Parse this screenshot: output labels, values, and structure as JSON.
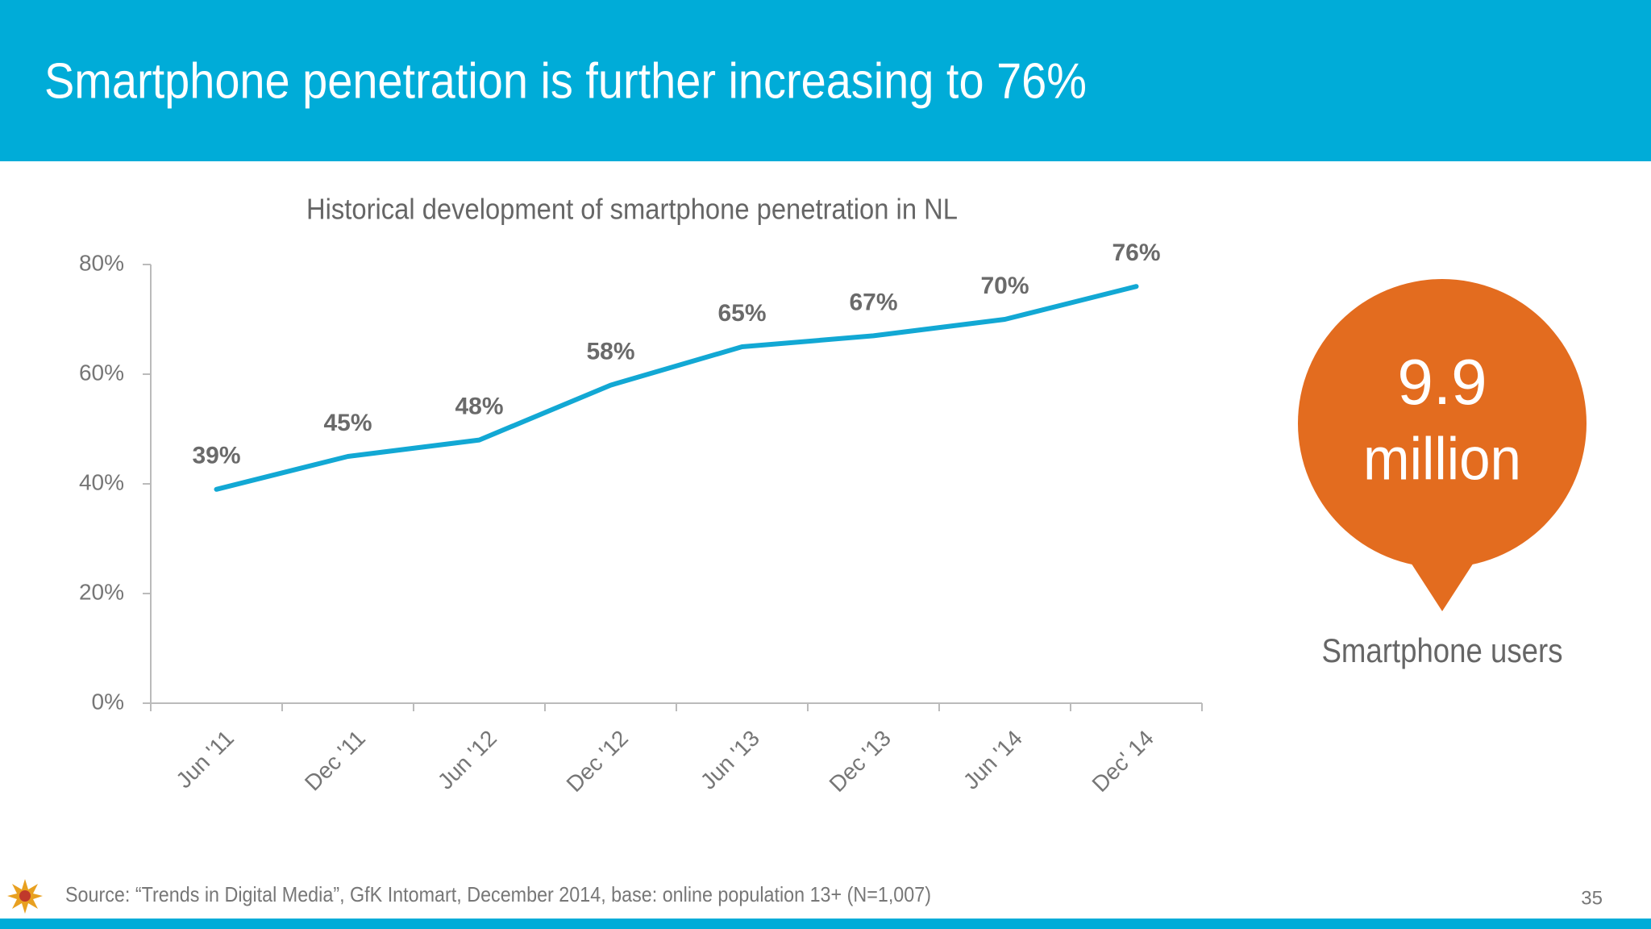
{
  "header": {
    "title": "Smartphone penetration is further increasing to 76%"
  },
  "chart_data": {
    "type": "line",
    "title": "Historical development of smartphone penetration in NL",
    "categories": [
      "Jun '11",
      "Dec '11",
      "Jun '12",
      "Dec '12",
      "Jun '13",
      "Dec '13",
      "Jun '14",
      "Dec' 14"
    ],
    "values": [
      39,
      45,
      48,
      58,
      65,
      67,
      70,
      76
    ],
    "value_labels": [
      "39%",
      "45%",
      "48%",
      "58%",
      "65%",
      "67%",
      "70%",
      "76%"
    ],
    "color": "#12a8d4",
    "ylim": [
      0,
      80
    ],
    "yticks": [
      {
        "value": 0,
        "label": "0%"
      },
      {
        "value": 20,
        "label": "20%"
      },
      {
        "value": 40,
        "label": "40%"
      },
      {
        "value": 60,
        "label": "60%"
      },
      {
        "value": 80,
        "label": "80%"
      }
    ],
    "grid": false
  },
  "callout": {
    "number": "9.9",
    "unit": "million",
    "caption": "Smartphone users"
  },
  "footer": {
    "source": "Source: “Trends in Digital Media”, GfK Intomart, December 2014, base: online population 13+ (N=1,007)",
    "page": "35"
  }
}
